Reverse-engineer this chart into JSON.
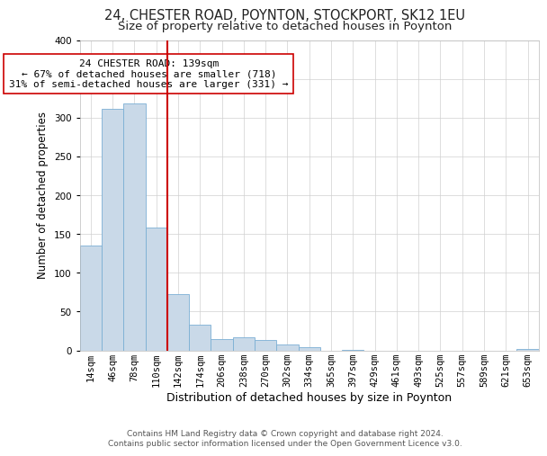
{
  "title1": "24, CHESTER ROAD, POYNTON, STOCKPORT, SK12 1EU",
  "title2": "Size of property relative to detached houses in Poynton",
  "xlabel": "Distribution of detached houses by size in Poynton",
  "ylabel": "Number of detached properties",
  "bin_labels": [
    "14sqm",
    "46sqm",
    "78sqm",
    "110sqm",
    "142sqm",
    "174sqm",
    "206sqm",
    "238sqm",
    "270sqm",
    "302sqm",
    "334sqm",
    "365sqm",
    "397sqm",
    "429sqm",
    "461sqm",
    "493sqm",
    "525sqm",
    "557sqm",
    "589sqm",
    "621sqm",
    "653sqm"
  ],
  "bin_values": [
    135,
    311,
    318,
    158,
    72,
    33,
    15,
    17,
    13,
    8,
    4,
    0,
    1,
    0,
    0,
    0,
    0,
    0,
    0,
    0,
    2
  ],
  "bar_color": "#c9d9e8",
  "bar_edge_color": "#7bafd4",
  "vline_x_bin": 4,
  "vline_color": "#cc0000",
  "annotation_text": "24 CHESTER ROAD: 139sqm\n← 67% of detached houses are smaller (718)\n31% of semi-detached houses are larger (331) →",
  "annotation_box_color": "white",
  "annotation_box_edge": "#cc0000",
  "ylim": [
    0,
    400
  ],
  "yticks": [
    0,
    50,
    100,
    150,
    200,
    250,
    300,
    350,
    400
  ],
  "footnote": "Contains HM Land Registry data © Crown copyright and database right 2024.\nContains public sector information licensed under the Open Government Licence v3.0.",
  "title1_fontsize": 10.5,
  "title2_fontsize": 9.5,
  "xlabel_fontsize": 9,
  "ylabel_fontsize": 8.5,
  "tick_fontsize": 7.5,
  "annot_fontsize": 8,
  "footnote_fontsize": 6.5
}
